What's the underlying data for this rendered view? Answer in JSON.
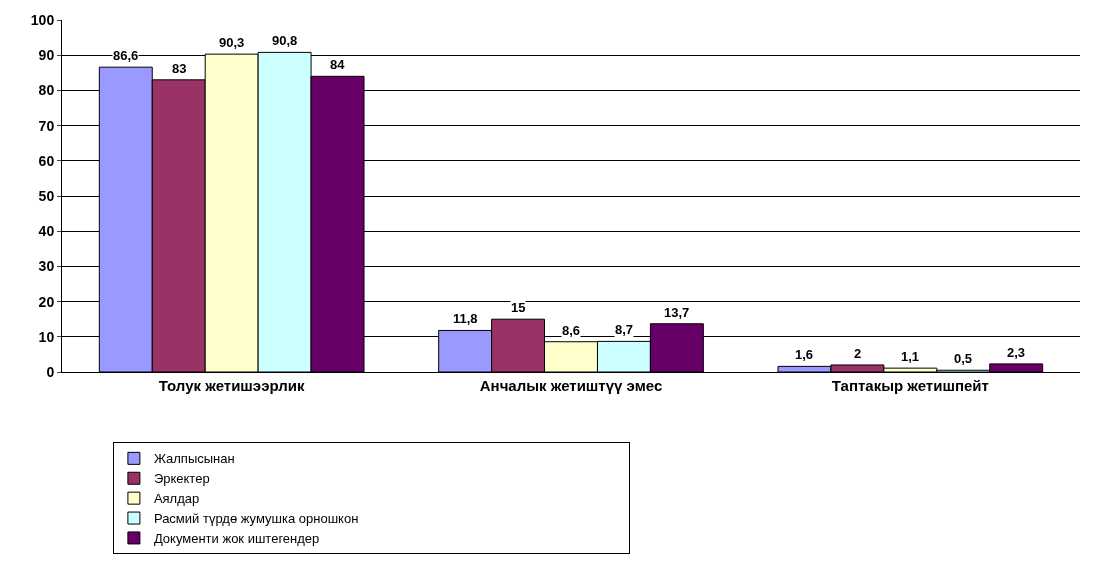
{
  "chart_data": {
    "type": "bar",
    "categories": [
      "Толук жетишээрлик",
      "Анчалык жетиштүү эмес",
      "Таптакыр жетишпейт"
    ],
    "series": [
      {
        "name": "Жалпысынан",
        "color": "#9999ff",
        "values": [
          86.6,
          11.8,
          1.6
        ],
        "value_labels": [
          "86,6",
          "11,8",
          "1,6"
        ]
      },
      {
        "name": "Эркектер",
        "color": "#993366",
        "values": [
          83,
          15,
          2
        ],
        "value_labels": [
          "83",
          "15",
          "2"
        ]
      },
      {
        "name": "Аялдар",
        "color": "#ffffcc",
        "values": [
          90.3,
          8.6,
          1.1
        ],
        "value_labels": [
          "90,3",
          "8,6",
          "1,1"
        ]
      },
      {
        "name": "Расмий түрдө жумушка орношкон",
        "color": "#ccffff",
        "values": [
          90.8,
          8.7,
          0.5
        ],
        "value_labels": [
          "90,8",
          "8,7",
          "0,5"
        ]
      },
      {
        "name": "Документи жок иштегендер",
        "color": "#660066",
        "values": [
          84,
          13.7,
          2.3
        ],
        "value_labels": [
          "84",
          "13,7",
          "2,3"
        ]
      }
    ],
    "ylim": [
      0,
      100
    ],
    "yticks": [
      0,
      10,
      20,
      30,
      40,
      50,
      60,
      70,
      80,
      90,
      100
    ],
    "grid": "y",
    "legend": "bottom"
  }
}
